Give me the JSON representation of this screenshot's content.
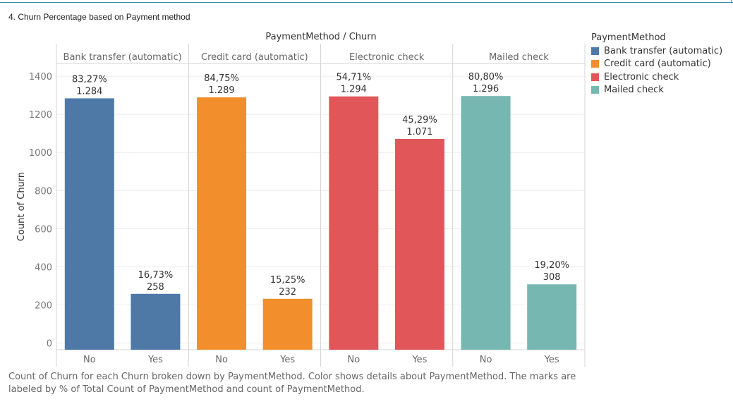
{
  "sheet_title": "4. Churn Percentage based on Payment method",
  "caption": "Count of Churn for each Churn broken down by PaymentMethod.  Color shows details about PaymentMethod.  The marks are labeled by % of Total Count of PaymentMethod and count of PaymentMethod.",
  "legend": {
    "title": "PaymentMethod",
    "items": [
      {
        "label": "Bank transfer (automatic)",
        "color": "#4e79a7"
      },
      {
        "label": "Credit card (automatic)",
        "color": "#f28e2b"
      },
      {
        "label": "Electronic check",
        "color": "#e15759"
      },
      {
        "label": "Mailed check",
        "color": "#76b7b2"
      }
    ]
  },
  "chart_data": {
    "type": "bar",
    "title": "PaymentMethod / Churn",
    "ylabel": "Count of Churn",
    "ylim": [
      0,
      1500
    ],
    "yticks": [
      0,
      200,
      400,
      600,
      800,
      1000,
      1200,
      1400
    ],
    "categories": [
      "No",
      "Yes"
    ],
    "groups": [
      {
        "name": "Bank transfer (automatic)",
        "color": "#4e79a7",
        "bars": [
          {
            "category": "No",
            "value": 1284,
            "pct": "83,27%",
            "count_label": "1.284"
          },
          {
            "category": "Yes",
            "value": 258,
            "pct": "16,73%",
            "count_label": "258"
          }
        ]
      },
      {
        "name": "Credit card (automatic)",
        "color": "#f28e2b",
        "bars": [
          {
            "category": "No",
            "value": 1289,
            "pct": "84,75%",
            "count_label": "1.289"
          },
          {
            "category": "Yes",
            "value": 232,
            "pct": "15,25%",
            "count_label": "232"
          }
        ]
      },
      {
        "name": "Electronic check",
        "color": "#e15759",
        "bars": [
          {
            "category": "No",
            "value": 1294,
            "pct": "54,71%",
            "count_label": "1.294"
          },
          {
            "category": "Yes",
            "value": 1071,
            "pct": "45,29%",
            "count_label": "1.071"
          }
        ]
      },
      {
        "name": "Mailed check",
        "color": "#76b7b2",
        "bars": [
          {
            "category": "No",
            "value": 1296,
            "pct": "80,80%",
            "count_label": "1.296"
          },
          {
            "category": "Yes",
            "value": 308,
            "pct": "19,20%",
            "count_label": "308"
          }
        ]
      }
    ]
  }
}
